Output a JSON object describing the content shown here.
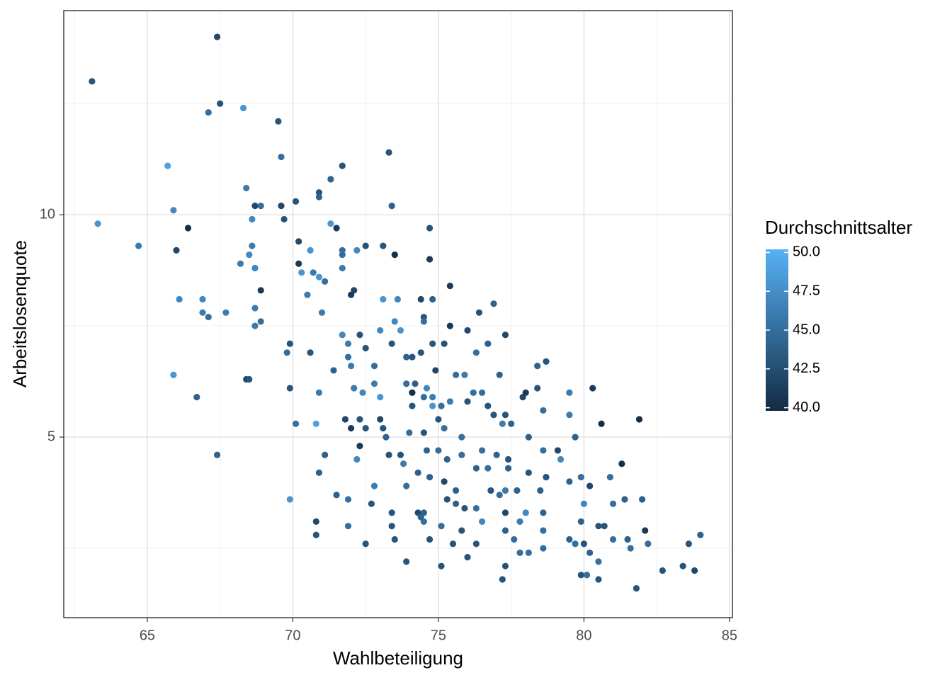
{
  "chart_data": {
    "type": "scatter",
    "x_label": "Wahlbeteiligung",
    "y_label": "Arbeitslosenquote",
    "color_title": "Durchschnittsalter",
    "xlim": [
      62.13,
      85.1
    ],
    "ylim": [
      0.94,
      14.59
    ],
    "xticks": [
      65,
      70,
      75,
      80,
      85
    ],
    "yticks": [
      5,
      10
    ],
    "grid": true,
    "colorlim": [
      39.8,
      50.2
    ],
    "colorticks": [
      {
        "value": 40,
        "label": "40.0"
      },
      42.5,
      {
        "value": 45,
        "label": "45.0"
      },
      47.5,
      {
        "value": 50,
        "label": "50.0"
      }
    ],
    "colors": [
      "#132B43",
      "#56B1F7"
    ],
    "x": [
      63.1,
      67.4,
      63.3,
      64.7,
      65.7,
      65.9,
      66.0,
      66.4,
      66.1,
      66.9,
      66.9,
      67.1,
      67.7,
      65.9,
      66.7,
      67.4,
      67.1,
      67.5,
      68.3,
      69.5,
      69.6,
      68.4,
      68.7,
      68.9,
      68.6,
      69.6,
      69.7,
      70.1,
      70.9,
      70.9,
      71.3,
      71.7,
      73.3,
      73.4,
      68.6,
      68.5,
      68.2,
      68.7,
      68.9,
      68.7,
      68.7,
      68.9,
      70.2,
      70.6,
      70.2,
      70.3,
      70.7,
      70.9,
      71.1,
      71.3,
      71.5,
      71.7,
      71.7,
      72.2,
      72.5,
      73.1,
      73.5,
      71.7,
      72.1,
      72.0,
      70.5,
      71.0,
      73.1,
      73.6,
      69.9,
      69.8,
      69.9,
      70.6,
      68.4,
      68.5,
      70.1,
      70.8,
      70.9,
      71.1,
      70.9,
      69.9,
      70.8,
      70.8,
      71.5,
      71.9,
      71.9,
      72.5,
      72.7,
      72.8,
      71.7,
      71.9,
      71.9,
      72.3,
      72.5,
      72.0,
      71.4,
      72.1,
      72.4,
      72.8,
      72.8,
      73.0,
      73.0,
      73.5,
      73.7,
      73.4,
      71.8,
      72.0,
      72.3,
      72.5,
      72.3,
      72.2,
      73.0,
      73.1,
      73.2,
      73.3,
      73.7,
      73.8,
      73.9,
      73.4,
      73.4,
      73.5,
      73.9,
      74.3,
      74.4,
      74.5,
      74.5,
      74.7,
      75.1,
      75.1,
      74.5,
      74.4,
      74.5,
      74.5,
      74.7,
      74.7,
      75.4,
      74.8,
      75.4,
      76.0,
      76.4,
      76.9,
      77.3,
      74.4,
      74.8,
      75.2,
      73.9,
      74.1,
      74.9,
      75.6,
      75.9,
      76.3,
      76.7,
      77.1,
      73.9,
      74.2,
      74.6,
      74.8,
      74.1,
      74.8,
      75.1,
      75.4,
      76.0,
      76.2,
      76.5,
      76.7,
      76.9,
      77.3,
      77.2,
      77.5,
      77.9,
      78.0,
      78.6,
      78.4,
      78.7,
      78.4,
      74.0,
      74.5,
      74.6,
      75.0,
      75.3,
      75.8,
      75.8,
      74.3,
      74.7,
      75.2,
      75.6,
      75.3,
      75.6,
      75.9,
      76.3,
      76.5,
      76.5,
      76.3,
      76.7,
      77.0,
      77.4,
      77.4,
      76.8,
      77.1,
      77.3,
      77.7,
      77.3,
      78.0,
      77.8,
      77.3,
      77.6,
      77.3,
      77.2,
      77.8,
      78.1,
      78.6,
      78.1,
      78.1,
      78.6,
      78.7,
      78.5,
      78.6,
      78.6,
      79.1,
      79.2,
      79.7,
      79.5,
      79.5,
      80.3,
      80.6,
      79.5,
      79.9,
      80.2,
      80.0,
      79.9,
      79.5,
      79.7,
      80.0,
      80.5,
      80.7,
      80.2,
      79.9,
      80.1,
      80.5,
      80.5,
      80.9,
      81.3,
      81.4,
      81.0,
      81.0,
      81.5,
      81.6,
      81.9,
      82.0,
      82.1,
      82.2,
      81.8,
      82.7,
      83.4,
      83.6,
      83.8,
      84.0,
      76.3,
      76.0,
      75.5,
      75.8,
      74.1,
      75.0,
      75.2
    ],
    "values": [
      13.0,
      14.0,
      9.8,
      9.3,
      11.1,
      10.1,
      9.2,
      9.7,
      8.1,
      8.1,
      7.8,
      7.7,
      7.8,
      6.4,
      5.9,
      4.6,
      12.3,
      12.5,
      12.4,
      12.1,
      11.3,
      10.6,
      10.2,
      10.2,
      9.9,
      10.2,
      9.9,
      10.3,
      10.5,
      10.4,
      10.8,
      11.1,
      11.4,
      10.2,
      9.3,
      9.1,
      8.9,
      8.8,
      8.3,
      7.9,
      7.5,
      7.6,
      9.4,
      9.2,
      8.9,
      8.7,
      8.7,
      8.6,
      8.5,
      9.8,
      9.7,
      9.2,
      9.1,
      9.2,
      9.3,
      9.3,
      9.1,
      8.8,
      8.3,
      8.2,
      8.2,
      7.8,
      8.1,
      8.1,
      7.1,
      6.9,
      6.1,
      6.9,
      6.3,
      6.3,
      5.3,
      5.3,
      6.0,
      4.6,
      4.2,
      3.6,
      3.1,
      2.8,
      3.7,
      3.6,
      3.0,
      2.6,
      3.5,
      3.9,
      7.3,
      7.1,
      6.8,
      7.3,
      7.0,
      6.6,
      6.5,
      6.1,
      6.0,
      6.6,
      6.2,
      5.9,
      7.4,
      7.6,
      7.4,
      7.1,
      5.4,
      5.2,
      5.4,
      5.2,
      4.8,
      4.5,
      5.4,
      5.2,
      5.0,
      4.6,
      4.6,
      4.4,
      3.9,
      3.3,
      3.0,
      2.7,
      2.2,
      3.3,
      3.2,
      3.1,
      3.3,
      2.7,
      2.1,
      3.0,
      5.9,
      8.1,
      7.7,
      7.6,
      9.7,
      9.0,
      8.4,
      8.1,
      7.5,
      7.4,
      7.8,
      8.0,
      7.3,
      6.9,
      7.1,
      7.1,
      6.8,
      6.8,
      6.5,
      6.4,
      6.4,
      6.9,
      7.1,
      6.4,
      6.2,
      6.2,
      6.1,
      5.9,
      5.7,
      5.7,
      5.7,
      5.8,
      5.8,
      6.0,
      6.0,
      5.7,
      5.5,
      5.5,
      5.3,
      5.3,
      5.9,
      6.0,
      5.6,
      6.6,
      6.7,
      6.1,
      5.1,
      5.1,
      4.7,
      4.7,
      4.5,
      5.0,
      4.6,
      4.2,
      4.1,
      4.0,
      3.8,
      3.6,
      3.5,
      3.4,
      3.4,
      3.1,
      4.7,
      4.3,
      4.3,
      4.6,
      4.5,
      4.3,
      3.8,
      3.7,
      3.8,
      3.8,
      3.3,
      3.3,
      3.1,
      2.9,
      2.7,
      2.1,
      1.8,
      2.4,
      2.4,
      2.5,
      4.2,
      5.0,
      4.7,
      4.1,
      3.8,
      3.3,
      2.9,
      4.7,
      4.5,
      5.0,
      5.5,
      6.0,
      6.1,
      5.3,
      4.0,
      4.1,
      3.9,
      3.5,
      3.1,
      2.7,
      2.6,
      2.6,
      3.0,
      3.0,
      2.4,
      1.9,
      1.9,
      1.8,
      2.2,
      4.1,
      4.4,
      3.6,
      3.5,
      2.7,
      2.7,
      2.5,
      5.4,
      3.6,
      2.9,
      2.6,
      1.6,
      2.0,
      2.1,
      2.6,
      2.0,
      2.8,
      2.6,
      2.3,
      2.6,
      2.9,
      6.0,
      5.4,
      5.2
    ],
    "color_values": [
      43,
      42,
      48,
      46,
      49,
      47,
      42,
      40,
      47,
      47,
      46,
      45,
      46,
      48,
      44,
      44,
      45,
      43,
      48,
      43,
      45,
      46,
      42,
      45,
      47,
      42,
      43,
      43,
      43,
      44,
      44,
      43,
      43,
      44,
      46,
      47,
      46,
      47,
      41,
      46,
      46,
      45,
      42,
      48,
      41,
      48,
      46,
      48,
      45,
      48,
      41,
      45,
      45,
      47,
      43,
      43,
      40,
      46,
      42,
      41,
      46,
      46,
      48,
      47,
      43,
      45,
      43,
      43,
      42,
      43,
      45,
      49,
      46,
      44,
      44,
      48,
      42,
      43,
      44,
      45,
      45,
      43,
      43,
      46,
      47,
      46,
      45,
      43,
      43,
      46,
      44,
      46,
      47,
      45,
      46,
      48,
      47,
      47,
      48,
      43,
      42,
      41,
      43,
      43,
      41,
      47,
      42,
      43,
      44,
      43,
      43,
      46,
      45,
      43,
      43,
      43,
      43,
      42,
      44,
      45,
      44,
      43,
      43,
      45,
      45,
      42,
      43,
      45,
      43,
      41,
      41,
      44,
      41,
      42,
      43,
      44,
      42,
      43,
      43,
      43,
      44,
      43,
      42,
      45,
      46,
      45,
      44,
      44,
      45,
      44,
      47,
      46,
      43,
      48,
      45,
      46,
      43,
      45,
      45,
      43,
      43,
      43,
      46,
      44,
      42,
      41,
      45,
      44,
      43,
      43,
      45,
      43,
      44,
      45,
      44,
      45,
      45,
      44,
      44,
      42,
      44,
      43,
      44,
      43,
      45,
      47,
      45,
      44,
      45,
      44,
      43,
      44,
      43,
      45,
      46,
      44,
      42,
      47,
      46,
      44,
      45,
      43,
      43,
      45,
      45,
      45,
      43,
      44,
      45,
      43,
      44,
      44,
      45,
      42,
      47,
      44,
      46,
      46,
      41,
      40,
      44,
      45,
      42,
      47,
      44,
      44,
      45,
      43,
      43,
      43,
      44,
      43,
      45,
      43,
      45,
      45,
      40,
      44,
      45,
      45,
      44,
      45,
      40,
      44,
      41,
      45,
      43,
      43,
      43,
      43,
      42,
      44,
      43,
      43,
      43,
      43,
      40,
      43,
      45
    ]
  }
}
